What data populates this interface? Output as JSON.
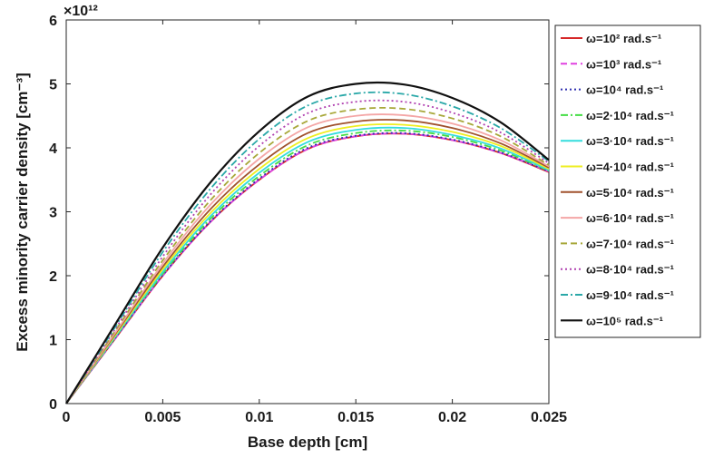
{
  "chart_data": {
    "type": "line",
    "xlabel": "Base depth [cm]",
    "ylabel": "Excess minority carrier density [cm⁻³]",
    "y_multiplier": "×10¹²",
    "xlim": [
      0,
      0.025
    ],
    "ylim": [
      0,
      6
    ],
    "x_ticks": [
      "0",
      "0.005",
      "0.01",
      "0.015",
      "0.02",
      "0.025"
    ],
    "y_ticks": [
      "0",
      "1",
      "2",
      "3",
      "4",
      "5",
      "6"
    ],
    "grid": false,
    "legend_position": "outside-right",
    "x": [
      0,
      0.0025,
      0.005,
      0.0075,
      0.01,
      0.0125,
      0.015,
      0.0175,
      0.02,
      0.0225,
      0.025
    ],
    "series": [
      {
        "name": "ω=10² rad.s⁻¹",
        "color": "#d62728",
        "dash": "solid",
        "values": [
          0,
          1.0,
          2.0,
          2.85,
          3.5,
          3.98,
          4.18,
          4.22,
          4.12,
          3.92,
          3.62
        ]
      },
      {
        "name": "ω=10³ rad.s⁻¹",
        "color": "#e040e0",
        "dash": "dashed",
        "values": [
          0,
          1.0,
          2.0,
          2.85,
          3.5,
          3.98,
          4.18,
          4.22,
          4.12,
          3.92,
          3.63
        ]
      },
      {
        "name": "ω=10⁴ rad.s⁻¹",
        "color": "#3030b0",
        "dash": "dotted",
        "values": [
          0,
          1.01,
          2.01,
          2.86,
          3.52,
          4.0,
          4.19,
          4.23,
          4.13,
          3.93,
          3.63
        ]
      },
      {
        "name": "ω=2·10⁴ rad.s⁻¹",
        "color": "#44dd44",
        "dash": "dashdot",
        "values": [
          0,
          1.02,
          2.03,
          2.9,
          3.56,
          4.04,
          4.23,
          4.27,
          4.17,
          3.96,
          3.64
        ]
      },
      {
        "name": "ω=3·10⁴ rad.s⁻¹",
        "color": "#33dddd",
        "dash": "solid",
        "values": [
          0,
          1.03,
          2.06,
          2.94,
          3.61,
          4.09,
          4.28,
          4.31,
          4.2,
          3.99,
          3.65
        ]
      },
      {
        "name": "ω=4·10⁴ rad.s⁻¹",
        "color": "#eeee22",
        "dash": "solid",
        "values": [
          0,
          1.05,
          2.1,
          2.99,
          3.67,
          4.15,
          4.34,
          4.36,
          4.25,
          4.03,
          3.67
        ]
      },
      {
        "name": "ω=5·10⁴ rad.s⁻¹",
        "color": "#a0522d",
        "dash": "solid",
        "values": [
          0,
          1.07,
          2.14,
          3.05,
          3.74,
          4.23,
          4.41,
          4.43,
          4.31,
          4.07,
          3.69
        ]
      },
      {
        "name": "ω=6·10⁴ rad.s⁻¹",
        "color": "#f4a6a6",
        "dash": "solid",
        "values": [
          0,
          1.09,
          2.19,
          3.12,
          3.83,
          4.32,
          4.5,
          4.51,
          4.38,
          4.12,
          3.71
        ]
      },
      {
        "name": "ω=7·10⁴ rad.s⁻¹",
        "color": "#a8a83a",
        "dash": "dashed",
        "values": [
          0,
          1.12,
          2.24,
          3.19,
          3.92,
          4.42,
          4.6,
          4.61,
          4.46,
          4.18,
          3.73
        ]
      },
      {
        "name": "ω=8·10⁴ rad.s⁻¹",
        "color": "#b040b0",
        "dash": "dotted",
        "values": [
          0,
          1.15,
          2.3,
          3.28,
          4.03,
          4.54,
          4.72,
          4.72,
          4.55,
          4.24,
          3.76
        ]
      },
      {
        "name": "ω=9·10⁴ rad.s⁻¹",
        "color": "#2aa8a8",
        "dash": "dashdot",
        "values": [
          0,
          1.18,
          2.37,
          3.37,
          4.14,
          4.66,
          4.85,
          4.84,
          4.65,
          4.31,
          3.79
        ]
      },
      {
        "name": "ω=10⁵ rad.s⁻¹",
        "color": "#111111",
        "dash": "solid",
        "values": [
          0,
          1.22,
          2.44,
          3.47,
          4.26,
          4.8,
          5.0,
          4.99,
          4.78,
          4.4,
          3.81
        ]
      }
    ]
  }
}
